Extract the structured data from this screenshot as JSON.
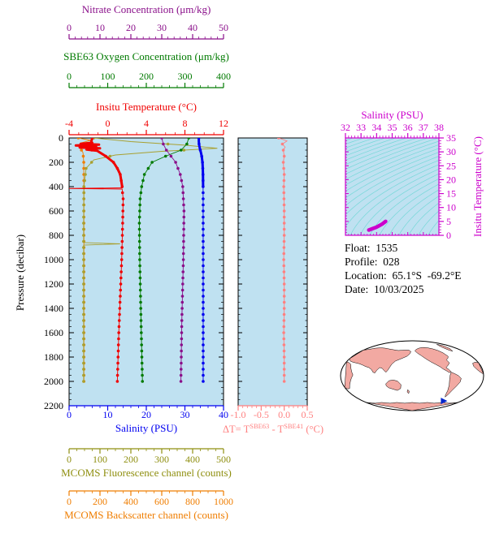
{
  "page": {
    "bg": "#ffffff",
    "plot_bg": "#bfe1f1"
  },
  "info_panel": {
    "lines": [
      "Float:  1535",
      "Profile:  028",
      "Location:  65.1°S  -69.2°E",
      "Date:  10/03/2025"
    ]
  },
  "map": {
    "land_color": "#f2a9a2",
    "ocean_color": "#ffffff",
    "outline_color": "#000000",
    "marker_color": "#0026cc",
    "marker_lon": -69.2,
    "marker_lat": -65.1,
    "center_lon": 180
  },
  "chart_data": [
    {
      "type": "line",
      "name": "profile-plot",
      "y_axis": {
        "label": "Pressure (decibar)",
        "range": [
          0,
          2200
        ],
        "direction": "down",
        "minor_step": 50,
        "ticks": [
          "0",
          "200",
          "400",
          "600",
          "800",
          "1000",
          "1200",
          "1400",
          "1600",
          "1800",
          "2000",
          "2200"
        ]
      },
      "x_axes": [
        {
          "id": "nitrate",
          "title": "Nitrate Concentration (μm/kg)",
          "color": "#8a0f8a",
          "range": [
            0,
            50
          ],
          "ticks": [
            "0",
            "10",
            "20",
            "30",
            "40",
            "50"
          ],
          "minor_step": 2,
          "position": "top"
        },
        {
          "id": "oxygen",
          "title": "SBE63 Oxygen Concentration (μm/kg)",
          "color": "#007a00",
          "range": [
            0,
            400
          ],
          "ticks": [
            "0",
            "100",
            "200",
            "300",
            "400"
          ],
          "minor_step": 20,
          "position": "top"
        },
        {
          "id": "temperature",
          "title": "Insitu Temperature (°C)",
          "color": "#f00000",
          "range": [
            -4,
            12
          ],
          "ticks": [
            "-4",
            "0",
            "4",
            "8",
            "12"
          ],
          "minor_step": 1,
          "position": "top"
        },
        {
          "id": "salinity",
          "title": "Salinity (PSU)",
          "color": "#0000f0",
          "range": [
            0,
            40
          ],
          "ticks": [
            "0",
            "10",
            "20",
            "30",
            "40"
          ],
          "minor_step": 2,
          "position": "bottom"
        },
        {
          "id": "fluorescence",
          "title": "MCOMS Fluorescence channel (counts)",
          "color": "#8f8f10",
          "range": [
            0,
            500
          ],
          "ticks": [
            "0",
            "100",
            "200",
            "300",
            "400",
            "500"
          ],
          "minor_step": 25,
          "position": "bottom"
        },
        {
          "id": "backscatter",
          "title": "MCOMS Backscatter channel (counts)",
          "color": "#ef7d00",
          "range": [
            0,
            1000
          ],
          "ticks": [
            "0",
            "200",
            "400",
            "600",
            "800",
            "1000"
          ],
          "minor_step": 50,
          "position": "bottom"
        }
      ],
      "series": [
        {
          "id": "backscatter-profile",
          "axis": "backscatter",
          "color": "#ef7d00",
          "points": [
            [
              0,
              60
            ],
            [
              20,
              140
            ],
            [
              40,
              80
            ],
            [
              60,
              120
            ],
            [
              80,
              70
            ],
            [
              120,
              90
            ],
            [
              200,
              95
            ],
            [
              400,
              96
            ],
            [
              1000,
              96
            ],
            [
              1500,
              96
            ],
            [
              2000,
              96
            ]
          ]
        },
        {
          "id": "fluorescence-profile",
          "axis": "fluorescence",
          "color": "#a8a030",
          "points": [
            [
              0,
              80
            ],
            [
              30,
              200
            ],
            [
              60,
              380
            ],
            [
              85,
              480
            ],
            [
              110,
              300
            ],
            [
              140,
              150
            ],
            [
              180,
              80
            ],
            [
              250,
              55
            ],
            [
              400,
              48
            ],
            [
              700,
              47
            ],
            [
              860,
              47
            ],
            [
              870,
              165
            ],
            [
              880,
              47
            ],
            [
              1000,
              47
            ],
            [
              1500,
              47
            ],
            [
              2000,
              47
            ]
          ]
        },
        {
          "id": "oxygen-profile",
          "axis": "oxygen",
          "color": "#007a00",
          "points": [
            [
              0,
              310
            ],
            [
              50,
              305
            ],
            [
              100,
              290
            ],
            [
              150,
              250
            ],
            [
              200,
              215
            ],
            [
              300,
              195
            ],
            [
              400,
              188
            ],
            [
              500,
              184
            ],
            [
              700,
              182
            ],
            [
              1000,
              183
            ],
            [
              1300,
              185
            ],
            [
              1600,
              187
            ],
            [
              2000,
              190
            ]
          ]
        },
        {
          "id": "nitrate-profile",
          "axis": "nitrate",
          "color": "#8a0f8a",
          "points": [
            [
              0,
              30
            ],
            [
              50,
              30.5
            ],
            [
              100,
              31.5
            ],
            [
              150,
              33
            ],
            [
              200,
              34.5
            ],
            [
              300,
              36
            ],
            [
              400,
              36.8
            ],
            [
              600,
              37.2
            ],
            [
              1000,
              37
            ],
            [
              1500,
              36.5
            ],
            [
              2000,
              36.2
            ]
          ]
        },
        {
          "id": "temperature-profile",
          "axis": "temperature",
          "color": "#f00000",
          "thick_top": true,
          "points": [
            [
              0,
              -1.6
            ],
            [
              30,
              -1.7
            ],
            [
              40,
              -1.6
            ],
            [
              48,
              -2.8
            ],
            [
              55,
              -0.9
            ],
            [
              62,
              -3.3
            ],
            [
              70,
              -1.2
            ],
            [
              78,
              -2.9
            ],
            [
              85,
              -0.8
            ],
            [
              95,
              -2.2
            ],
            [
              105,
              -1.1
            ],
            [
              120,
              -0.8
            ],
            [
              150,
              -0.2
            ],
            [
              200,
              0.6
            ],
            [
              250,
              1.0
            ],
            [
              300,
              1.3
            ],
            [
              400,
              1.5
            ],
            [
              410,
              1.5
            ],
            [
              415,
              -4.0
            ],
            [
              420,
              1.5
            ],
            [
              500,
              1.6
            ],
            [
              700,
              1.55
            ],
            [
              1000,
              1.45
            ],
            [
              1300,
              1.3
            ],
            [
              1600,
              1.15
            ],
            [
              2000,
              1.0
            ]
          ]
        },
        {
          "id": "salinity-profile",
          "axis": "salinity",
          "color": "#0000f0",
          "thick_top": true,
          "points": [
            [
              0,
              33.6
            ],
            [
              30,
              33.6
            ],
            [
              60,
              33.7
            ],
            [
              90,
              33.9
            ],
            [
              120,
              34.15
            ],
            [
              150,
              34.35
            ],
            [
              200,
              34.55
            ],
            [
              250,
              34.63
            ],
            [
              300,
              34.68
            ],
            [
              400,
              34.71
            ],
            [
              500,
              34.72
            ],
            [
              1000,
              34.73
            ],
            [
              1500,
              34.73
            ],
            [
              2000,
              34.73
            ]
          ]
        }
      ]
    },
    {
      "type": "line",
      "name": "delta-t-plot",
      "x_axis": {
        "title_parts": [
          "ΔT= T",
          "SBE63",
          " - T",
          "SBE41",
          " (°C)"
        ],
        "color": "#ff8080",
        "range": [
          -1.0,
          0.5
        ],
        "ticks": [
          "-1.0",
          "-0.5",
          "0.0",
          "0.5"
        ],
        "minor_step": 0.1
      },
      "series": [
        {
          "id": "delta-t",
          "color": "#ff8080",
          "points": [
            [
              0,
              -0.12
            ],
            [
              25,
              0.06
            ],
            [
              50,
              -0.04
            ],
            [
              75,
              0.02
            ],
            [
              100,
              -0.02
            ],
            [
              150,
              0
            ],
            [
              200,
              -0.02
            ],
            [
              300,
              0
            ],
            [
              400,
              -0.01
            ],
            [
              600,
              0
            ],
            [
              800,
              0
            ],
            [
              1000,
              -0.01
            ],
            [
              1200,
              0
            ],
            [
              1400,
              0
            ],
            [
              1600,
              -0.01
            ],
            [
              1800,
              0
            ],
            [
              2000,
              0
            ]
          ]
        }
      ]
    },
    {
      "type": "scatter",
      "name": "ts-diagram",
      "title": "Salinity (PSU)",
      "right_label": "Insitu Temperature (°C)",
      "color": "#cc00cc",
      "x_range": [
        32,
        38
      ],
      "x_ticks": [
        "32",
        "33",
        "34",
        "35",
        "36",
        "37",
        "38"
      ],
      "x_minor_step": 0.2,
      "y_range": [
        0,
        35
      ],
      "y_ticks": [
        "0",
        "5",
        "10",
        "15",
        "20",
        "25",
        "30",
        "35"
      ],
      "y_minor_step": 1,
      "contour_color": "#76d8d8",
      "contour_levels": [
        18,
        18.5,
        19,
        19.5,
        20,
        20.5,
        21,
        21.5,
        22,
        22.5,
        23,
        23.5,
        24,
        24.5,
        25,
        25.5,
        26,
        26.5,
        27,
        27.5,
        28,
        28.5,
        29,
        29.5,
        30
      ],
      "points": [
        [
          33.5,
          1.9
        ],
        [
          33.62,
          2.15
        ],
        [
          33.74,
          2.4
        ],
        [
          33.86,
          2.65
        ],
        [
          33.98,
          2.9
        ],
        [
          34.08,
          3.2
        ],
        [
          34.18,
          3.5
        ],
        [
          34.28,
          3.8
        ],
        [
          34.37,
          4.1
        ],
        [
          34.45,
          4.45
        ],
        [
          34.52,
          4.75
        ],
        [
          34.58,
          5.0
        ]
      ]
    }
  ]
}
